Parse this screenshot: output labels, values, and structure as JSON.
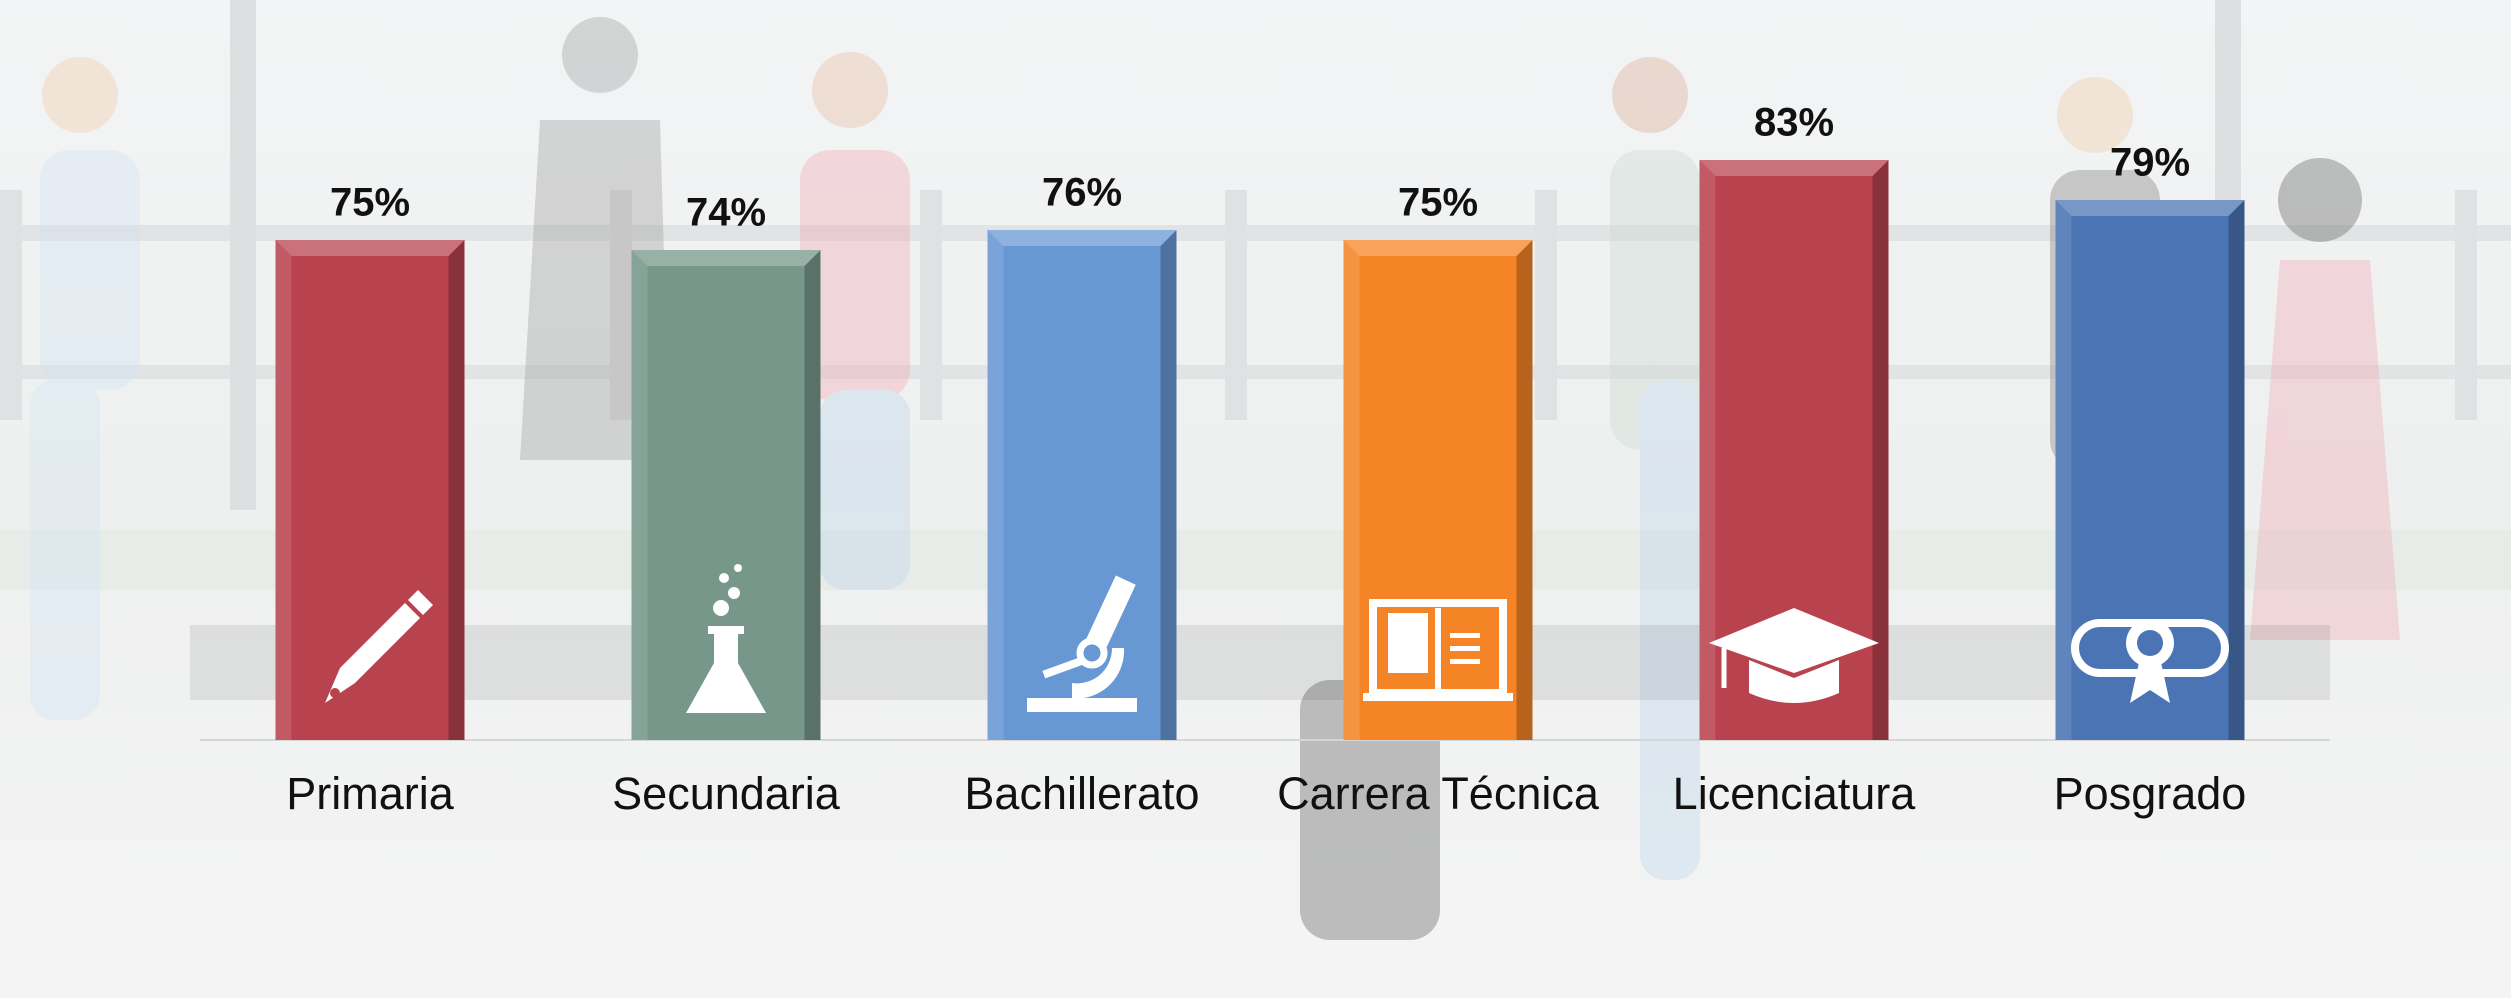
{
  "chart_data": {
    "type": "bar",
    "categories": [
      "Primaria",
      "Secundaria",
      "Bachillerato",
      "Carrera Técnica",
      "Licenciatura",
      "Posgrado"
    ],
    "values": [
      75,
      74,
      76,
      75,
      83,
      79
    ],
    "value_labels": [
      "75%",
      "74%",
      "76%",
      "75%",
      "83%",
      "79%"
    ],
    "colors": [
      "#b8434f",
      "#76978a",
      "#6898d4",
      "#f58426",
      "#b8434f",
      "#4a74b4"
    ],
    "ylim": [
      25,
      100
    ]
  }
}
